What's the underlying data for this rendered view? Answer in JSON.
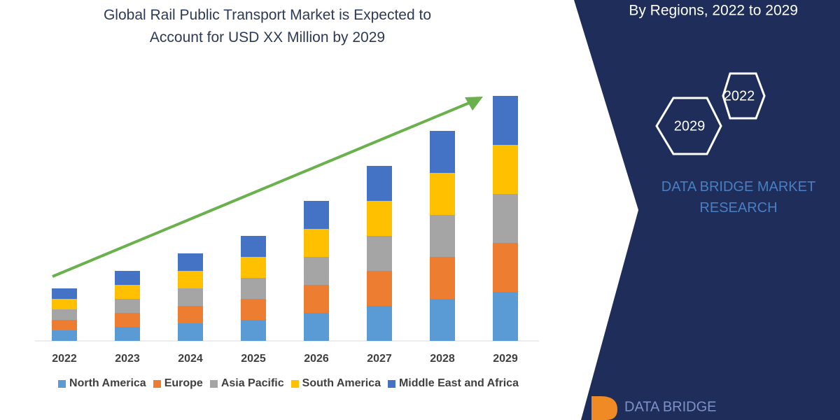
{
  "chart_data": {
    "type": "bar",
    "stacked": true,
    "title": "Global Rail Public Transport Market is Expected to Account for USD XX Million by 2029",
    "categories": [
      "2022",
      "2023",
      "2024",
      "2025",
      "2026",
      "2027",
      "2028",
      "2029"
    ],
    "series": [
      {
        "name": "North America",
        "color": "#5b9bd5",
        "values": [
          15,
          20,
          25,
          30,
          40,
          50,
          60,
          70
        ]
      },
      {
        "name": "Europe",
        "color": "#ed7d31",
        "values": [
          15,
          20,
          25,
          30,
          40,
          50,
          60,
          70
        ]
      },
      {
        "name": "Asia Pacific",
        "color": "#a5a5a5",
        "values": [
          15,
          20,
          25,
          30,
          40,
          50,
          60,
          70
        ]
      },
      {
        "name": "South America",
        "color": "#ffc000",
        "values": [
          15,
          20,
          25,
          30,
          40,
          50,
          60,
          70
        ]
      },
      {
        "name": "Middle East and Africa",
        "color": "#4472c4",
        "values": [
          15,
          20,
          25,
          30,
          40,
          50,
          60,
          70
        ]
      }
    ],
    "ylim": [
      0,
      360
    ],
    "grid": false
  },
  "panel": {
    "heading": "By Regions, 2022 to 2029",
    "badges": [
      "2022",
      "2029"
    ],
    "brand": "DATA BRIDGE MARKET RESEARCH"
  },
  "logo": "DATA BRIDGE"
}
